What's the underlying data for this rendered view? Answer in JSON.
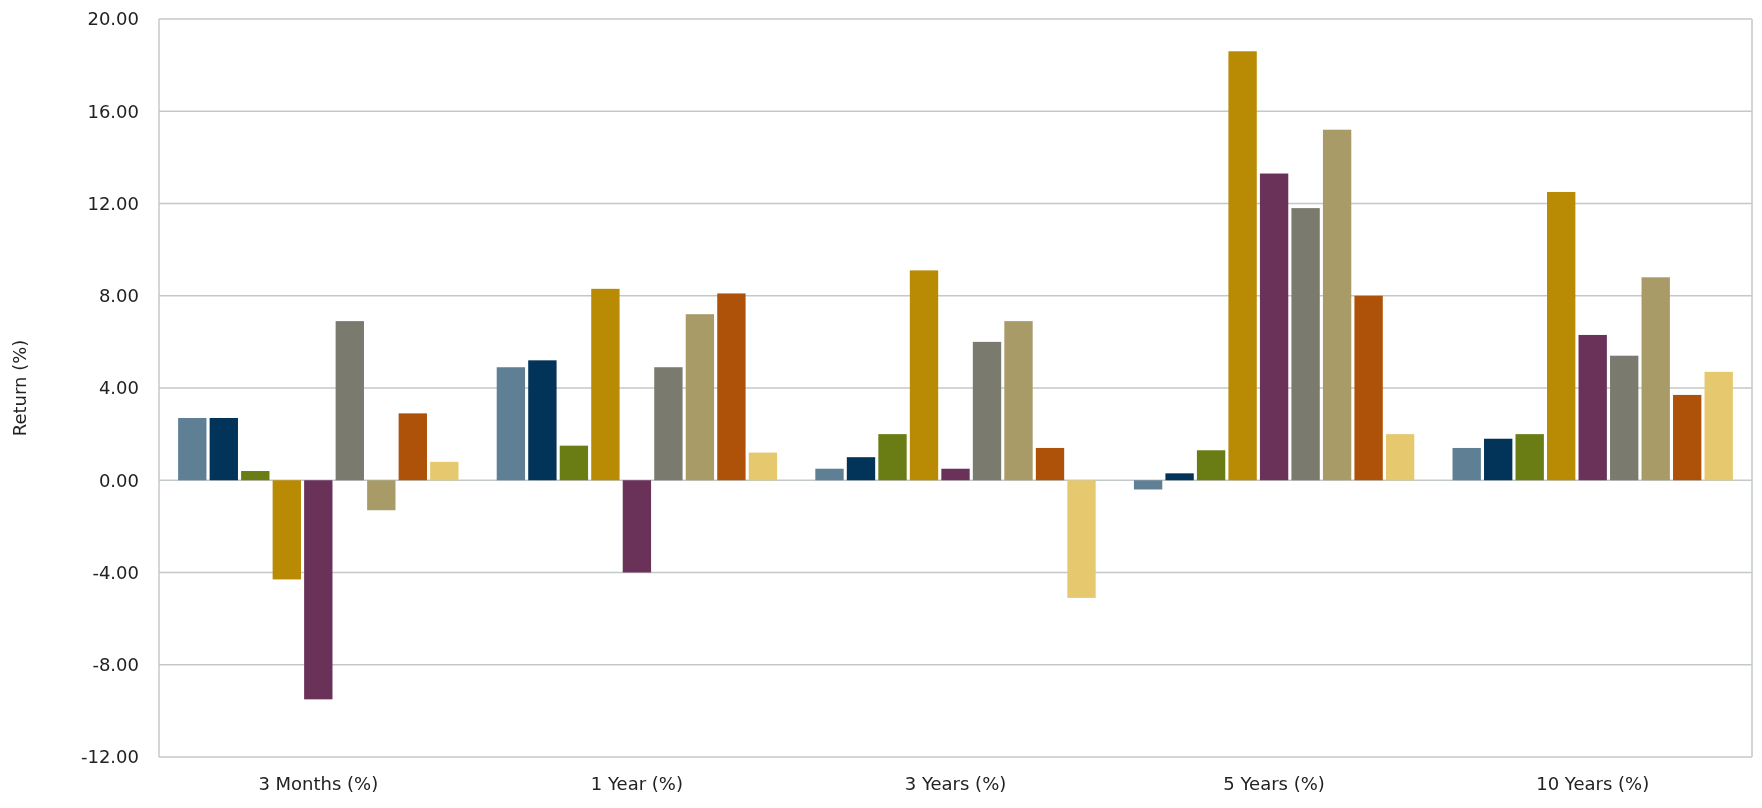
{
  "chart_data": {
    "type": "bar",
    "ylabel": "Return (%)",
    "categories": [
      "3 Months (%)",
      "1 Year (%)",
      "3 Years (%)",
      "5 Years (%)",
      "10 Years (%)"
    ],
    "series": [
      {
        "color": "#5f7f95",
        "values": [
          2.7,
          4.9,
          0.5,
          -0.4,
          1.4
        ]
      },
      {
        "color": "#023459",
        "values": [
          2.7,
          5.2,
          1.0,
          0.3,
          1.8
        ]
      },
      {
        "color": "#6a7d14",
        "values": [
          0.4,
          1.5,
          2.0,
          1.3,
          2.0
        ]
      },
      {
        "color": "#b98a03",
        "values": [
          -4.3,
          8.3,
          9.1,
          18.6,
          12.5
        ]
      },
      {
        "color": "#6a3259",
        "values": [
          -9.5,
          -4.0,
          0.5,
          13.3,
          6.3
        ]
      },
      {
        "color": "#7a7a6e",
        "values": [
          6.9,
          4.9,
          6.0,
          11.8,
          5.4
        ]
      },
      {
        "color": "#a89b67",
        "values": [
          -1.3,
          7.2,
          6.9,
          15.2,
          8.8
        ]
      },
      {
        "color": "#ae520a",
        "values": [
          2.9,
          8.1,
          1.4,
          8.0,
          3.7
        ]
      },
      {
        "color": "#e6c96e",
        "values": [
          0.8,
          1.2,
          -5.1,
          2.0,
          4.7
        ]
      }
    ],
    "ylim": [
      -12,
      20
    ],
    "yticks": [
      {
        "value": -12,
        "label": "-12.00"
      },
      {
        "value": -8,
        "label": "-8.00"
      },
      {
        "value": -4,
        "label": "-4.00"
      },
      {
        "value": 0,
        "label": "0.00"
      },
      {
        "value": 4,
        "label": "4.00"
      },
      {
        "value": 8,
        "label": "8.00"
      },
      {
        "value": 12,
        "label": "12.00"
      },
      {
        "value": 16,
        "label": "16.00"
      },
      {
        "value": 20,
        "label": "20.00"
      }
    ],
    "grid": "y"
  }
}
